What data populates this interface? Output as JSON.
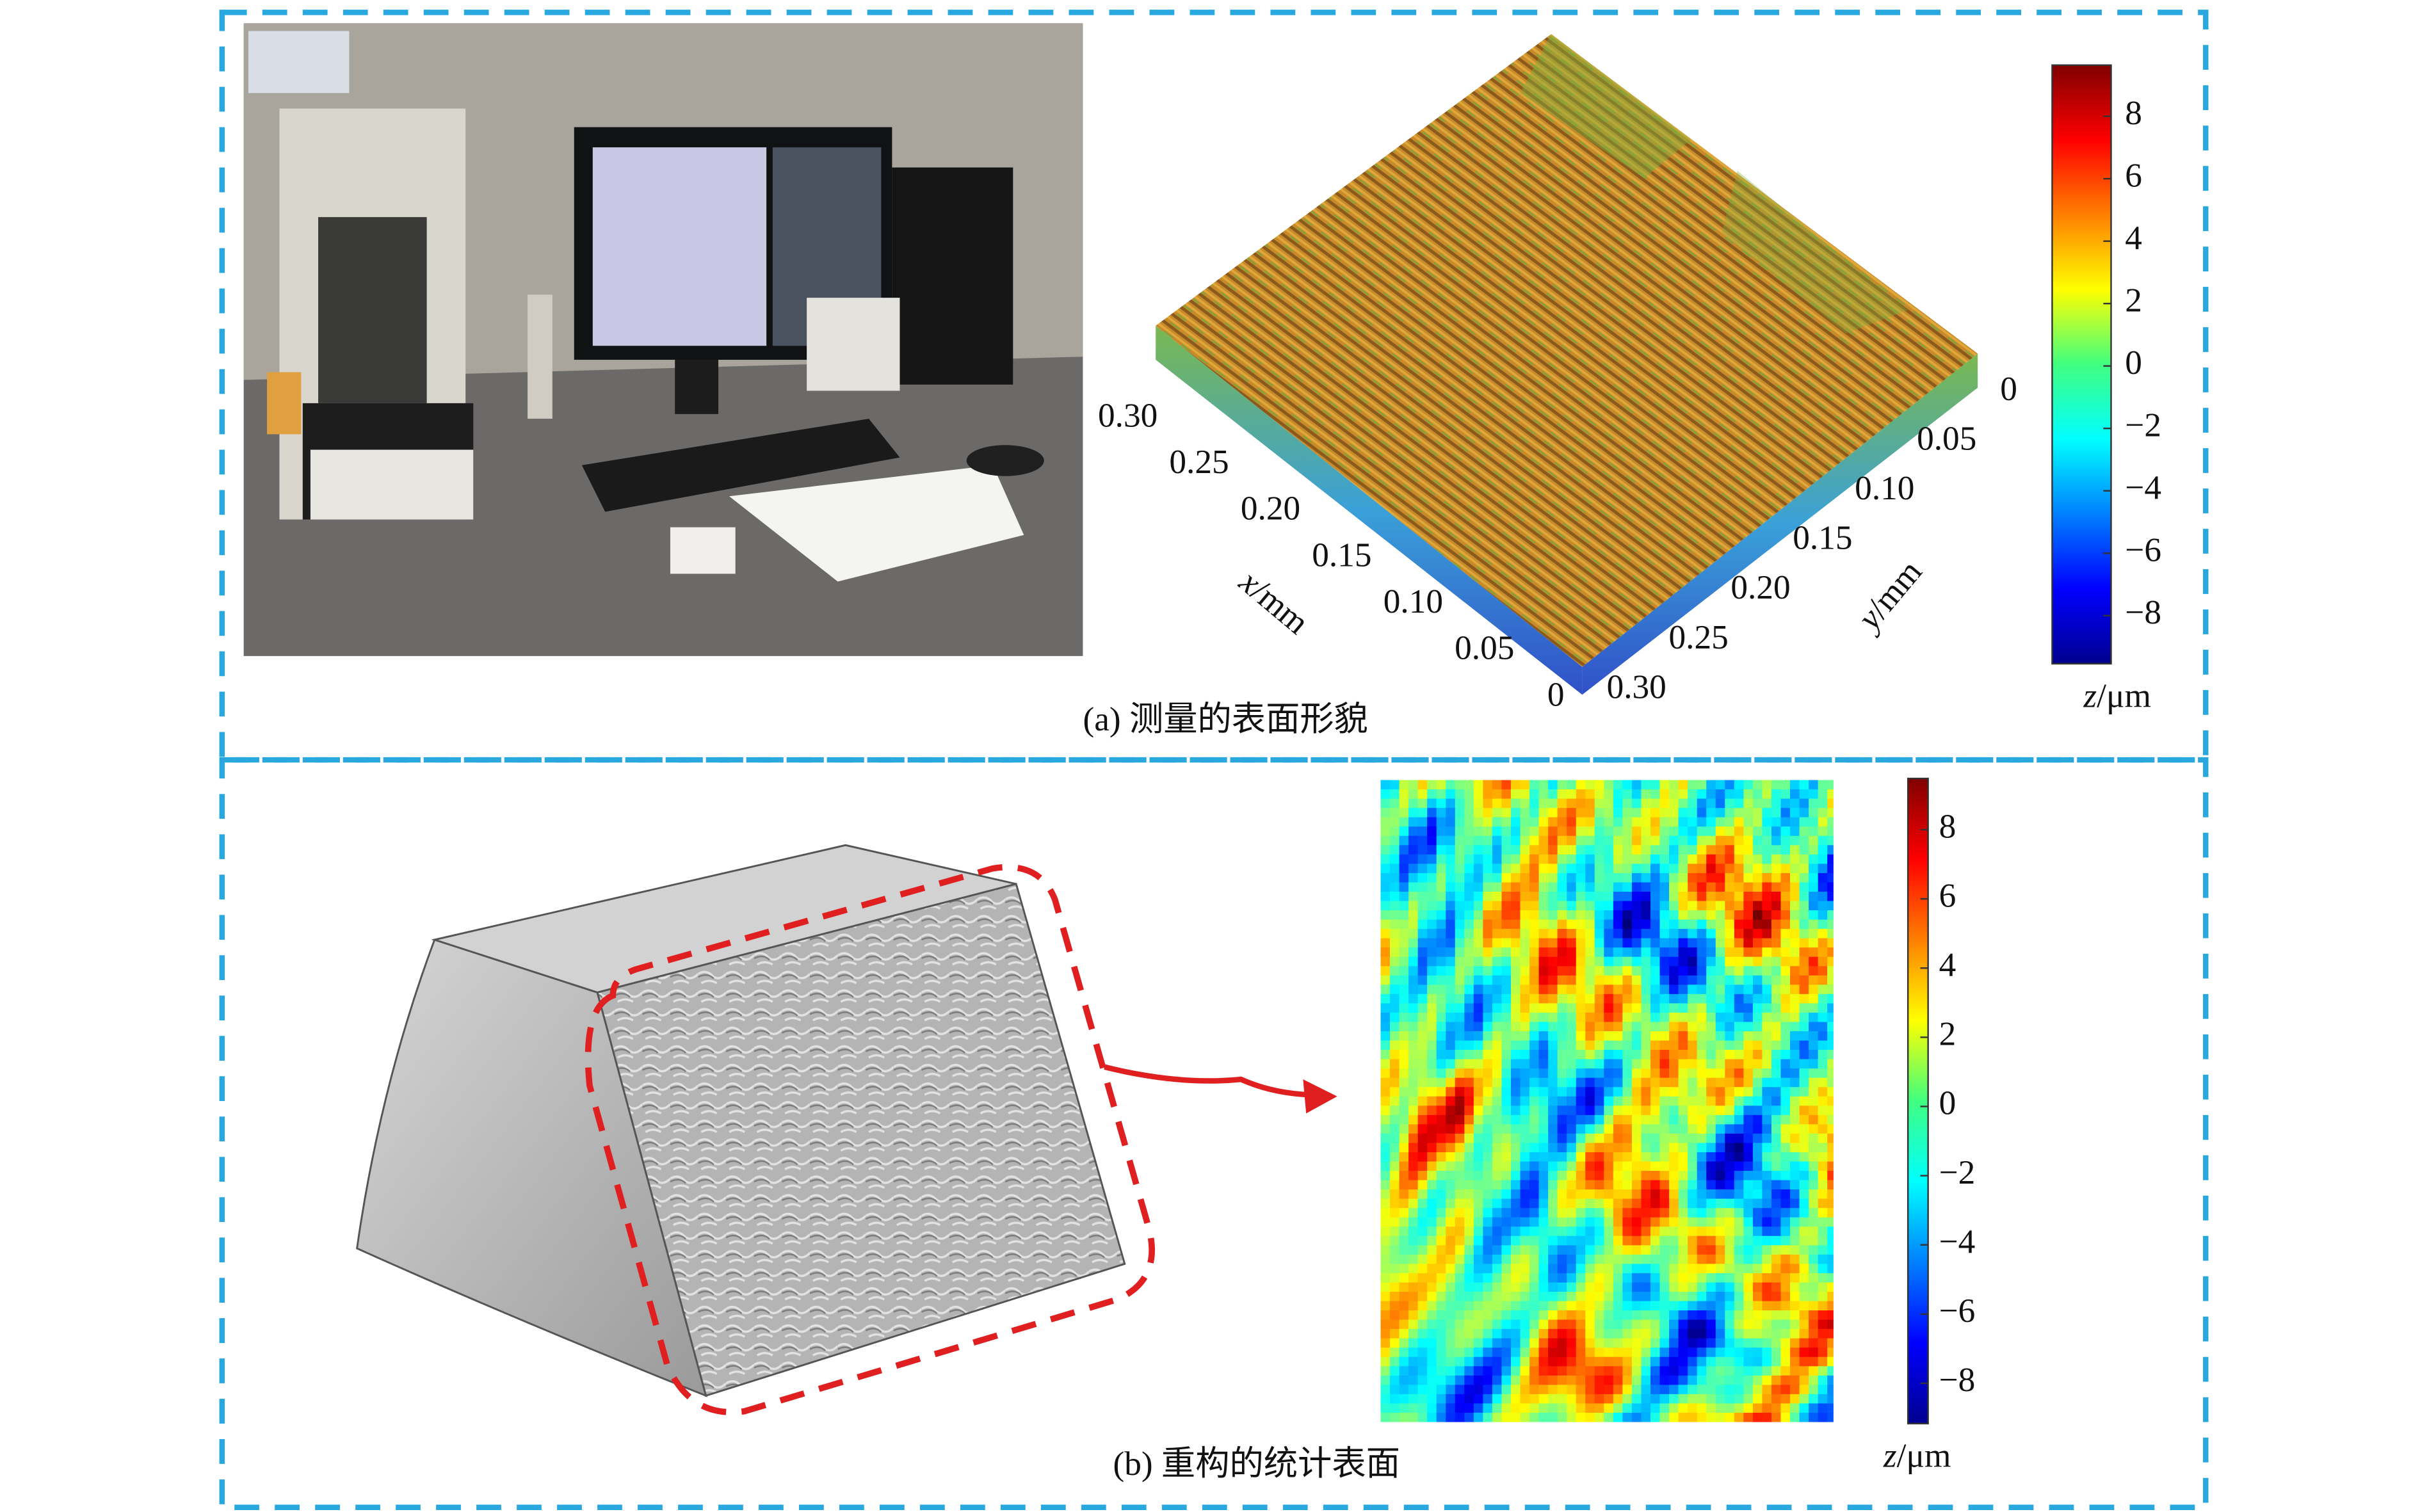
{
  "panel_a": {
    "caption": "(a) 测量的表面形貌",
    "x_axis": {
      "variable": "x",
      "unit": "/mm",
      "ticks": [
        "0.30",
        "0.25",
        "0.20",
        "0.15",
        "0.10",
        "0.05",
        "0"
      ]
    },
    "y_axis": {
      "variable": "y",
      "unit": "/mm",
      "ticks": [
        "0",
        "0.05",
        "0.10",
        "0.15",
        "0.20",
        "0.25",
        "0.30"
      ]
    },
    "colorbar": {
      "variable": "z",
      "unit": "/μm",
      "ticks": [
        "8",
        "6",
        "4",
        "2",
        "0",
        "−2",
        "−4",
        "−6",
        "−8"
      ]
    }
  },
  "panel_b": {
    "caption": "(b) 重构的统计表面",
    "colorbar": {
      "variable": "z",
      "unit": "/μm",
      "ticks": [
        "8",
        "6",
        "4",
        "2",
        "0",
        "−2",
        "−4",
        "−6",
        "−8"
      ]
    }
  }
}
